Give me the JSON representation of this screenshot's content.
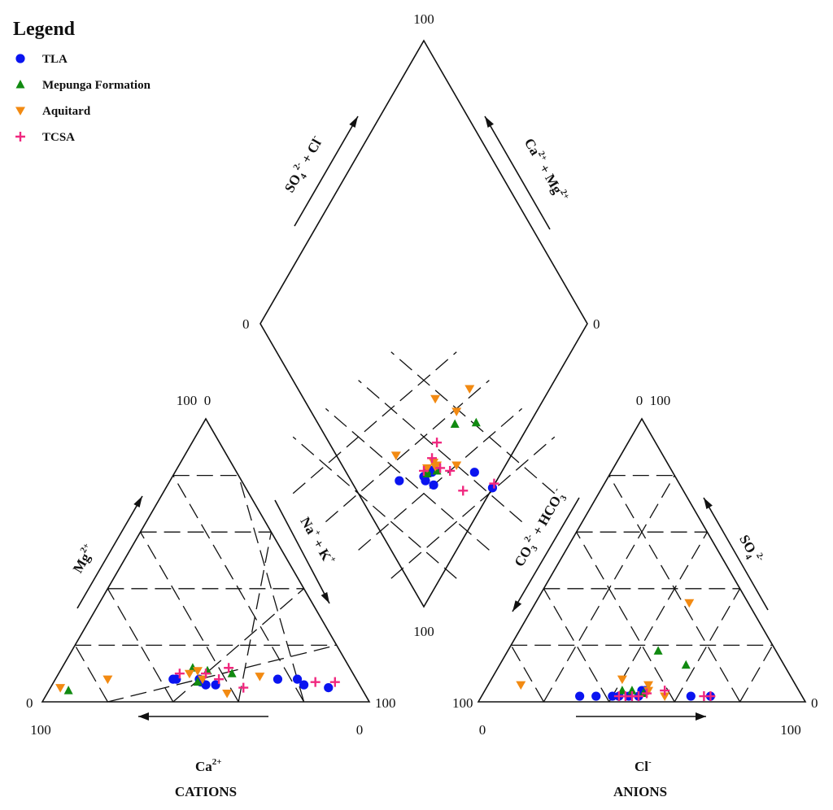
{
  "chart_data": {
    "type": "scatter",
    "title": "",
    "legend": {
      "title": "Legend",
      "placement": "top-left",
      "items": [
        {
          "name": "TLA",
          "marker": "circle",
          "color": "#0a14f0"
        },
        {
          "name": "Mepunga Formation",
          "marker": "triangle-up",
          "color": "#118a11"
        },
        {
          "name": "Aquitard",
          "marker": "triangle-down",
          "color": "#f28a12"
        },
        {
          "name": "TCSA",
          "marker": "plus",
          "color": "#f0287f"
        }
      ]
    },
    "labels": {
      "cations_title": "CATIONS",
      "anions_title": "ANIONS",
      "ca_text": "Ca",
      "ca_sup": "2+",
      "cl_text": "Cl",
      "cl_sup": "-",
      "mg_text": "Mg",
      "mg_sup": "2+",
      "nak_text": "Na",
      "nak_sup1": "+",
      "nak_mid": " + K",
      "nak_sup2": "+",
      "co3_text": "CO",
      "co3_sub": "3",
      "co3_sup": "2-",
      "co3_mid": " + HCO",
      "hco3_sub": "3",
      "hco3_sup": "-",
      "so4_text": "SO",
      "so4_sub": "4",
      "so4_sup": "2-",
      "dso4_text": "SO",
      "dso4_sub": "4",
      "dso4_sup": "2-",
      "dso4_mid": " + Cl",
      "dcl_sup": "-",
      "dca_text": "Ca",
      "dca_sup": "2+",
      "dca_mid": " + Mg",
      "dmg_sup": "2+"
    },
    "ticks": {
      "cat_top": "100  0",
      "cat_left": "0",
      "cat_bl": "100",
      "cat_right": "100",
      "cat_br": "0",
      "an_top": "0  100",
      "an_left": "100",
      "an_bl": "0",
      "an_right": "0",
      "an_br": "100",
      "dia_top": "100",
      "dia_left": "0",
      "dia_right": "0",
      "dia_bottom": "100"
    },
    "cation_axes": [
      "Ca2+ (%)",
      "Mg2+ (%)",
      "Na+ + K+ (%)"
    ],
    "anion_axes": [
      "Cl- (%)",
      "SO4 2- (%)",
      "CO3 2- + HCO3- (%)"
    ],
    "diamond_axes": [
      "SO4 2- + Cl- (%)",
      "Ca2+ + Mg2+ (%)"
    ],
    "cations": {
      "TLA": [
        [
          55,
          8
        ],
        [
          56,
          8
        ],
        [
          48,
          8
        ],
        [
          48,
          7
        ],
        [
          47,
          6
        ],
        [
          44,
          6
        ],
        [
          24,
          8
        ],
        [
          17,
          6
        ],
        [
          10,
          5
        ],
        [
          18,
          8
        ]
      ],
      "Mepunga Formation": [
        [
          90,
          4
        ],
        [
          48,
          12
        ],
        [
          44,
          11
        ],
        [
          49,
          7
        ],
        [
          37,
          10
        ]
      ],
      "Aquitard": [
        [
          92,
          5
        ],
        [
          76,
          8
        ],
        [
          50,
          10
        ],
        [
          47,
          11
        ],
        [
          47,
          8
        ],
        [
          42,
          3
        ],
        [
          29,
          9
        ]
      ],
      "TCSA": [
        [
          45,
          10
        ],
        [
          42,
          8
        ],
        [
          53,
          10
        ],
        [
          37,
          12
        ],
        [
          36,
          5
        ],
        [
          13,
          7
        ],
        [
          7,
          7
        ]
      ]
    },
    "anions": {
      "TLA": [
        [
          30,
          2
        ],
        [
          35,
          2
        ],
        [
          40,
          2
        ],
        [
          42,
          2
        ],
        [
          45,
          2
        ],
        [
          48,
          2
        ],
        [
          49,
          4
        ],
        [
          48,
          4
        ],
        [
          64,
          2
        ],
        [
          70,
          2
        ]
      ],
      "Mepunga Formation": [
        [
          45,
          4
        ],
        [
          42,
          4
        ],
        [
          49,
          3
        ],
        [
          46,
          18
        ],
        [
          57,
          13
        ]
      ],
      "Aquitard": [
        [
          10,
          6
        ],
        [
          47,
          35
        ],
        [
          40,
          8
        ],
        [
          49,
          6
        ],
        [
          50,
          4
        ],
        [
          56,
          2
        ]
      ],
      "TCSA": [
        [
          42,
          2
        ],
        [
          44,
          2
        ],
        [
          46,
          2
        ],
        [
          48,
          2
        ],
        [
          50,
          3
        ],
        [
          55,
          4
        ],
        [
          68,
          2
        ],
        [
          70,
          2
        ]
      ]
    },
    "diamond": {
      "TLA": [
        [
          46,
          46
        ],
        [
          45,
          44
        ],
        [
          48,
          46
        ],
        [
          46,
          40
        ],
        [
          50,
          45
        ],
        [
          50,
          47
        ],
        [
          52,
          45
        ],
        [
          63,
          32
        ],
        [
          63,
          21
        ],
        [
          37,
          52
        ]
      ],
      "Mepunga Formation": [
        [
          48,
          46
        ],
        [
          49,
          47
        ],
        [
          52,
          44
        ],
        [
          74,
          55
        ],
        [
          81,
          49
        ]
      ],
      "Aquitard": [
        [
          45,
          62
        ],
        [
          50,
          48
        ],
        [
          53,
          46
        ],
        [
          54,
          46
        ],
        [
          54,
          48
        ],
        [
          60,
          40
        ],
        [
          79,
          59
        ],
        [
          77,
          70
        ],
        [
          91,
          63
        ]
      ],
      "TCSA": [
        [
          48,
          48
        ],
        [
          55,
          50
        ],
        [
          54,
          44
        ],
        [
          56,
          40
        ],
        [
          65,
          22
        ],
        [
          53,
          29
        ],
        [
          62,
          54
        ]
      ]
    }
  }
}
